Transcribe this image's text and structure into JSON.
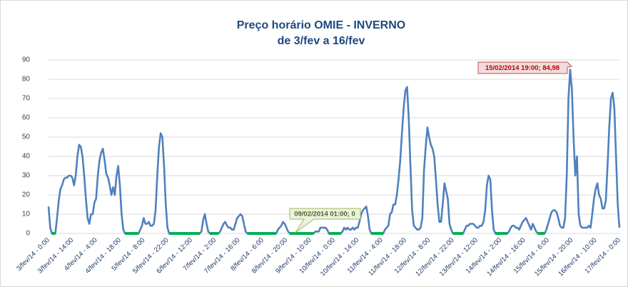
{
  "chart_data": {
    "type": "line",
    "title": [
      "Preço horário OMIE - INVERNO",
      "de 3/fev a 16/fev"
    ],
    "annotations": [
      "15/02/2014 19:00; 84,98",
      "09/02/2014 01:00; 0"
    ],
    "categories": [
      "3/fev/14 - 0:00",
      null,
      null,
      null,
      null,
      null,
      null,
      null,
      null,
      null,
      null,
      null,
      null,
      null,
      "3/fev/14 - 14:00",
      null,
      null,
      null,
      null,
      null,
      null,
      null,
      null,
      null,
      null,
      null,
      null,
      null,
      "4/fev/14 - 4:00",
      null,
      null,
      null,
      null,
      null,
      null,
      null,
      null,
      null,
      null,
      null,
      null,
      null,
      "4/fev/14 - 18:00",
      null,
      null,
      null,
      null,
      null,
      null,
      null,
      null,
      null,
      null,
      null,
      null,
      null,
      "5/fev/14 - 8:00",
      null,
      null,
      null,
      null,
      null,
      null,
      null,
      null,
      null,
      null,
      null,
      null,
      null,
      "5/fev/14 - 22:00",
      null,
      null,
      null,
      null,
      null,
      null,
      null,
      null,
      null,
      null,
      null,
      null,
      null,
      "6/fev/14 - 12:00",
      null,
      null,
      null,
      null,
      null,
      null,
      null,
      null,
      null,
      null,
      null,
      null,
      null,
      "7/fev/14 - 2:00",
      null,
      null,
      null,
      null,
      null,
      null,
      null,
      null,
      null,
      null,
      null,
      null,
      null,
      "7/fev/14 - 16:00",
      null,
      null,
      null,
      null,
      null,
      null,
      null,
      null,
      null,
      null,
      null,
      null,
      null,
      "8/fev/14 - 6:00",
      null,
      null,
      null,
      null,
      null,
      null,
      null,
      null,
      null,
      null,
      null,
      null,
      null,
      "8/fev/14 - 20:00",
      null,
      null,
      null,
      null,
      null,
      null,
      null,
      null,
      null,
      null,
      null,
      null,
      null,
      "9/fev/14 - 10:00",
      null,
      null,
      null,
      null,
      null,
      null,
      null,
      null,
      null,
      null,
      null,
      null,
      null,
      "10/fev/14 - 0:00",
      null,
      null,
      null,
      null,
      null,
      null,
      null,
      null,
      null,
      null,
      null,
      null,
      null,
      "10/fev/14 - 14:00",
      null,
      null,
      null,
      null,
      null,
      null,
      null,
      null,
      null,
      null,
      null,
      null,
      null,
      "11/fev/14 - 4:00",
      null,
      null,
      null,
      null,
      null,
      null,
      null,
      null,
      null,
      null,
      null,
      null,
      null,
      "11/fev/14 - 18:00",
      null,
      null,
      null,
      null,
      null,
      null,
      null,
      null,
      null,
      null,
      null,
      null,
      null,
      "12/fev/14 - 8:00",
      null,
      null,
      null,
      null,
      null,
      null,
      null,
      null,
      null,
      null,
      null,
      null,
      null,
      "12/fev/14 - 22:00",
      null,
      null,
      null,
      null,
      null,
      null,
      null,
      null,
      null,
      null,
      null,
      null,
      null,
      "13/fev/14 - 12:00",
      null,
      null,
      null,
      null,
      null,
      null,
      null,
      null,
      null,
      null,
      null,
      null,
      null,
      "14/fev/14 - 2:00",
      null,
      null,
      null,
      null,
      null,
      null,
      null,
      null,
      null,
      null,
      null,
      null,
      null,
      "14/fev/14 - 16:00",
      null,
      null,
      null,
      null,
      null,
      null,
      null,
      null,
      null,
      null,
      null,
      null,
      null,
      "15/fev/14 - 6:00",
      null,
      null,
      null,
      null,
      null,
      null,
      null,
      null,
      null,
      null,
      null,
      null,
      null,
      "15/fev/14 - 20:00",
      null,
      null,
      null,
      null,
      null,
      null,
      null,
      null,
      null,
      null,
      null,
      null,
      null,
      "16/fev/14 - 10:00",
      null,
      null,
      null,
      null,
      null,
      null,
      null,
      null,
      null,
      null,
      null,
      null,
      null,
      "17/fev/14 - 0:00"
    ],
    "values": [
      14,
      3,
      0,
      0,
      0,
      8,
      17,
      23,
      25,
      28,
      29,
      29,
      30,
      30,
      29,
      25,
      30,
      40,
      46,
      45,
      40,
      30,
      18,
      8,
      5,
      10,
      10,
      16,
      18,
      30,
      38,
      42,
      44,
      38,
      31,
      29,
      25,
      20,
      24,
      20,
      30,
      35,
      25,
      10,
      2,
      0,
      0,
      0,
      0,
      0,
      0,
      0,
      0,
      0,
      2,
      4,
      8,
      5,
      5,
      6,
      4,
      4,
      5,
      12,
      30,
      45,
      52,
      50,
      35,
      15,
      3,
      0,
      0,
      0,
      0,
      0,
      0,
      0,
      0,
      0,
      0,
      0,
      0,
      0,
      0,
      0,
      0,
      0,
      0,
      0,
      1,
      7,
      10,
      5,
      1,
      0,
      0,
      0,
      0,
      0,
      0,
      1,
      3,
      5,
      6,
      4,
      3,
      3,
      2,
      2,
      5,
      8,
      9,
      10,
      9,
      5,
      1,
      0,
      0,
      0,
      0,
      0,
      0,
      0,
      0,
      0,
      0,
      0,
      0,
      0,
      0,
      0,
      0,
      0,
      0,
      2,
      3,
      4,
      6,
      5,
      3,
      1,
      0,
      0,
      0,
      0,
      0,
      0,
      0,
      0,
      0,
      0,
      0,
      0,
      0,
      0,
      0,
      1,
      1,
      1,
      3,
      3,
      3,
      3,
      2,
      0,
      0,
      0,
      0,
      0,
      0,
      0,
      0,
      1,
      3,
      2,
      3,
      2,
      2,
      3,
      2,
      3,
      3,
      6,
      10,
      12,
      13,
      14,
      9,
      2,
      0,
      0,
      0,
      0,
      0,
      0,
      0,
      0,
      2,
      3,
      4,
      10,
      11,
      15,
      15,
      20,
      28,
      38,
      52,
      65,
      74,
      76,
      60,
      35,
      12,
      4,
      3,
      2,
      2,
      3,
      8,
      33,
      45,
      55,
      50,
      46,
      44,
      40,
      28,
      15,
      6,
      6,
      15,
      26,
      22,
      18,
      5,
      2,
      0,
      0,
      0,
      0,
      0,
      0,
      0,
      2,
      4,
      4,
      5,
      5,
      5,
      4,
      3,
      3,
      4,
      4,
      6,
      12,
      25,
      30,
      28,
      12,
      2,
      0,
      0,
      0,
      0,
      0,
      0,
      0,
      0,
      1,
      3,
      4,
      4,
      3,
      3,
      2,
      4,
      6,
      7,
      8,
      6,
      4,
      2,
      5,
      3,
      1,
      0,
      0,
      0,
      0,
      0,
      2,
      5,
      8,
      11,
      12,
      12,
      11,
      8,
      4,
      3,
      3,
      8,
      30,
      70,
      84.98,
      75,
      50,
      30,
      40,
      10,
      4,
      3,
      3,
      3,
      3,
      4,
      3,
      10,
      18,
      23,
      26,
      20,
      18,
      13,
      13,
      17,
      35,
      55,
      70,
      73,
      65,
      40,
      15,
      3
    ],
    "color": "#4f81bd",
    "zero_color": "#00b050",
    "ylim": [
      0,
      90
    ],
    "yticks": [
      0,
      10,
      20,
      30,
      40,
      50,
      60,
      70,
      80,
      90
    ],
    "grid": true
  }
}
